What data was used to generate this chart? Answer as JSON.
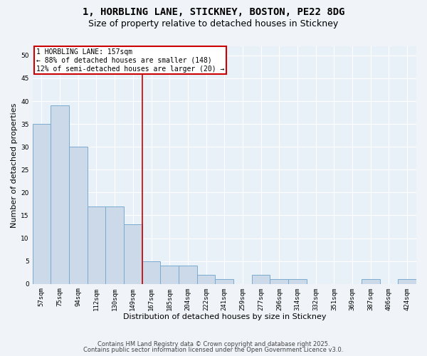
{
  "title_line1": "1, HORBLING LANE, STICKNEY, BOSTON, PE22 8DG",
  "title_line2": "Size of property relative to detached houses in Stickney",
  "xlabel": "Distribution of detached houses by size in Stickney",
  "ylabel": "Number of detached properties",
  "categories": [
    "57sqm",
    "75sqm",
    "94sqm",
    "112sqm",
    "130sqm",
    "149sqm",
    "167sqm",
    "185sqm",
    "204sqm",
    "222sqm",
    "241sqm",
    "259sqm",
    "277sqm",
    "296sqm",
    "314sqm",
    "332sqm",
    "351sqm",
    "369sqm",
    "387sqm",
    "406sqm",
    "424sqm"
  ],
  "values": [
    35,
    39,
    30,
    17,
    17,
    13,
    5,
    4,
    4,
    2,
    1,
    0,
    2,
    1,
    1,
    0,
    0,
    0,
    1,
    0,
    1
  ],
  "bar_color": "#ccd9e8",
  "bar_edge_color": "#7aabcf",
  "property_line_index": 6,
  "property_line_color": "#cc0000",
  "annotation_box_color": "#ffffff",
  "annotation_box_edge": "#cc0000",
  "annotation_text_line1": "1 HORBLING LANE: 157sqm",
  "annotation_text_line2": "← 88% of detached houses are smaller (148)",
  "annotation_text_line3": "12% of semi-detached houses are larger (20) →",
  "footer_line1": "Contains HM Land Registry data © Crown copyright and database right 2025.",
  "footer_line2": "Contains public sector information licensed under the Open Government Licence v3.0.",
  "ylim": [
    0,
    52
  ],
  "yticks": [
    0,
    5,
    10,
    15,
    20,
    25,
    30,
    35,
    40,
    45,
    50
  ],
  "bg_color": "#e8f0f8",
  "grid_color": "#ffffff",
  "fig_bg_color": "#f0f4f8",
  "title_fontsize": 10,
  "subtitle_fontsize": 9,
  "axis_label_fontsize": 8,
  "tick_fontsize": 6.5,
  "annotation_fontsize": 7,
  "footer_fontsize": 6
}
